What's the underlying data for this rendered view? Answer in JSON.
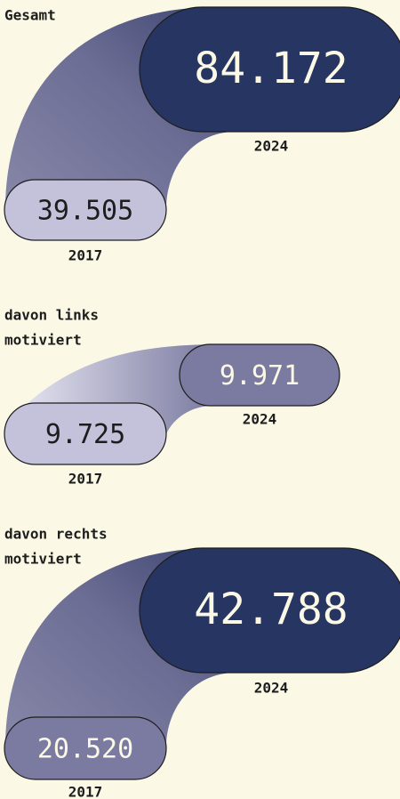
{
  "panels": [
    {
      "title": [
        "Gesamt"
      ],
      "current": {
        "value": "84.172",
        "year": "2024"
      },
      "previous": {
        "value": "39.505",
        "year": "2017"
      }
    },
    {
      "title": [
        "davon links",
        "motiviert"
      ],
      "current": {
        "value": "9.971",
        "year": "2024"
      },
      "previous": {
        "value": "9.725",
        "year": "2017"
      }
    },
    {
      "title": [
        "davon rechts",
        "motiviert"
      ],
      "current": {
        "value": "42.788",
        "year": "2024"
      },
      "previous": {
        "value": "20.520",
        "year": "2017"
      }
    }
  ]
}
